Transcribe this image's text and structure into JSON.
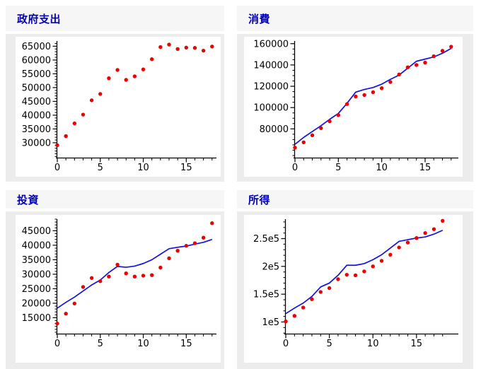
{
  "theme": {
    "page_bg": "#ffffff",
    "band_bg": "#f6f6f6",
    "chart_backdrop_bg": "#ececec",
    "figure_bg": "#ffffff",
    "title_color": "#0000bb",
    "axis_color": "#000000",
    "tick_label_color": "#000000",
    "dot_color": "#ee0000",
    "line_color": "#1111ee"
  },
  "chart_data": [
    {
      "type": "scatter",
      "title": "政府支出",
      "x": [
        0,
        1,
        2,
        3,
        4,
        5,
        6,
        7,
        8,
        9,
        10,
        11,
        12,
        13,
        14,
        15,
        16,
        17,
        18
      ],
      "series": [
        {
          "name": "observed-points",
          "type": "scatter",
          "color": "#ee0000",
          "values": [
            29100,
            32400,
            37000,
            40200,
            45400,
            47700,
            53400,
            56400,
            52800,
            54100,
            56600,
            60300,
            64700,
            65600,
            64000,
            64500,
            64400,
            63400,
            64900
          ]
        }
      ],
      "xlim": [
        0,
        18.1
      ],
      "ylim": [
        24600,
        66900
      ],
      "x_major_ticks": [
        0,
        5,
        10,
        15
      ],
      "x_tick_labels": [
        "0",
        "5",
        "10",
        "15"
      ],
      "x_minor_step": 1,
      "y_major_ticks": [
        30000,
        35000,
        40000,
        45000,
        50000,
        55000,
        60000,
        65000
      ],
      "y_tick_labels": [
        "30000",
        "35000",
        "40000",
        "45000",
        "50000",
        "55000",
        "60000",
        "65000"
      ],
      "y_minor_step": 1000,
      "grid": false,
      "legend": "none"
    },
    {
      "type": "scatter+line",
      "title": "消費",
      "x": [
        0,
        1,
        2,
        3,
        4,
        5,
        6,
        7,
        8,
        9,
        10,
        11,
        12,
        13,
        14,
        15,
        16,
        17,
        18
      ],
      "series": [
        {
          "name": "fitted-line",
          "type": "line",
          "color": "#1111ee",
          "values": [
            65500,
            72000,
            77500,
            83000,
            89000,
            94500,
            104000,
            114500,
            117000,
            118800,
            122000,
            126500,
            130500,
            137000,
            143500,
            145500,
            147500,
            151000,
            155500
          ]
        },
        {
          "name": "observed-points",
          "type": "scatter",
          "color": "#ee0000",
          "values": [
            62400,
            67400,
            74000,
            80700,
            87100,
            92900,
            103300,
            110400,
            111800,
            114400,
            118200,
            124000,
            131100,
            137800,
            140000,
            142200,
            148200,
            153300,
            157100
          ]
        }
      ],
      "xlim": [
        0,
        18.1
      ],
      "ylim": [
        53000,
        162500
      ],
      "x_major_ticks": [
        0,
        5,
        10,
        15
      ],
      "x_tick_labels": [
        "0",
        "5",
        "10",
        "15"
      ],
      "x_minor_step": 1,
      "y_major_ticks": [
        80000,
        100000,
        120000,
        140000,
        160000
      ],
      "y_tick_labels": [
        "80000",
        "100000",
        "120000",
        "140000",
        "160000"
      ],
      "y_minor_step": 5000,
      "grid": false,
      "legend": "none"
    },
    {
      "type": "scatter+line",
      "title": "投資",
      "x": [
        0,
        1,
        2,
        3,
        4,
        5,
        6,
        7,
        8,
        9,
        10,
        11,
        12,
        13,
        14,
        15,
        16,
        17,
        18
      ],
      "series": [
        {
          "name": "fitted-line",
          "type": "line",
          "color": "#1111ee",
          "values": [
            18300,
            20300,
            22100,
            24200,
            26300,
            28000,
            30600,
            32700,
            32400,
            32800,
            33700,
            35000,
            36900,
            38800,
            39300,
            39700,
            40400,
            41000,
            42000
          ]
        },
        {
          "name": "observed-points",
          "type": "scatter",
          "color": "#ee0000",
          "values": [
            13000,
            16400,
            19900,
            25600,
            28700,
            27600,
            29200,
            33300,
            30300,
            29200,
            29500,
            29700,
            32300,
            35500,
            38100,
            39800,
            40700,
            42600,
            47600
          ]
        }
      ],
      "xlim": [
        0,
        18.1
      ],
      "ylim": [
        9500,
        49000
      ],
      "x_major_ticks": [
        0,
        5,
        10,
        15
      ],
      "x_tick_labels": [
        "0",
        "5",
        "10",
        "15"
      ],
      "x_minor_step": 1,
      "y_major_ticks": [
        15000,
        20000,
        25000,
        30000,
        35000,
        40000,
        45000
      ],
      "y_tick_labels": [
        "15000",
        "20000",
        "25000",
        "30000",
        "35000",
        "40000",
        "45000"
      ],
      "y_minor_step": 1000,
      "grid": false,
      "legend": "none"
    },
    {
      "type": "scatter+line",
      "title": "所得",
      "x": [
        0,
        1,
        2,
        3,
        4,
        5,
        6,
        7,
        8,
        9,
        10,
        11,
        12,
        13,
        14,
        15,
        16,
        17,
        18
      ],
      "series": [
        {
          "name": "fitted-line",
          "type": "line",
          "color": "#1111ee",
          "values": [
            115000,
            125000,
            134000,
            146000,
            163000,
            170000,
            184000,
            202000,
            202000,
            205000,
            212000,
            221000,
            233000,
            245000,
            248000,
            251000,
            253000,
            258000,
            265000
          ]
        },
        {
          "name": "observed-points",
          "type": "scatter",
          "color": "#ee0000",
          "values": [
            101000,
            111000,
            126000,
            141000,
            154000,
            161000,
            177000,
            185000,
            184000,
            191000,
            200000,
            210000,
            221000,
            234000,
            243000,
            251000,
            260000,
            267000,
            282000
          ]
        }
      ],
      "xlim": [
        0,
        18.1
      ],
      "ylim": [
        79000,
        285000
      ],
      "x_major_ticks": [
        0,
        5,
        10,
        15
      ],
      "x_tick_labels": [
        "0",
        "5",
        "10",
        "15"
      ],
      "x_minor_step": 1,
      "y_major_ticks": [
        100000,
        150000,
        200000,
        250000
      ],
      "y_tick_labels": [
        "1e5",
        "1.5e5",
        "2e5",
        "2.5e5"
      ],
      "y_minor_step": 10000,
      "grid": false,
      "legend": "none"
    }
  ]
}
